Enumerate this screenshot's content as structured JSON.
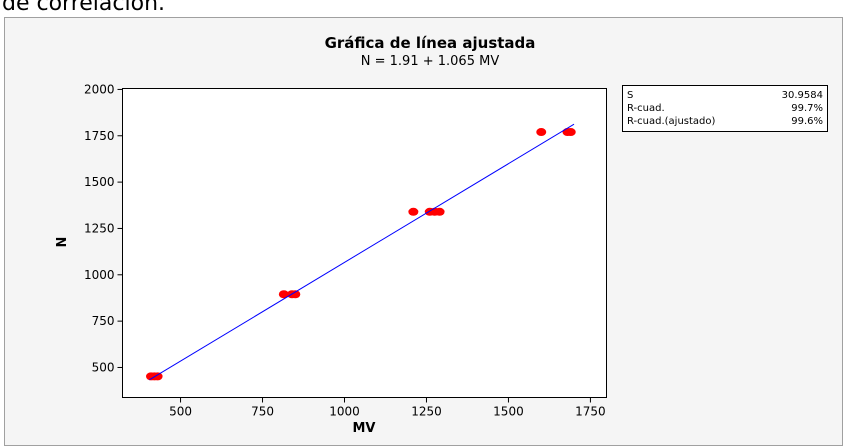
{
  "header": "de correlación.",
  "chart_data": {
    "type": "scatter",
    "title": "Gráfica de línea ajustada",
    "subtitle": "N =  1.91 + 1.065 MV",
    "x_label": "MV",
    "y_label": "N",
    "xlim": [
      323,
      1799
    ],
    "ylim": [
      338,
      2005
    ],
    "xticks": [
      500,
      750,
      1000,
      1250,
      1500,
      1750
    ],
    "yticks": [
      500,
      750,
      1000,
      1250,
      1500,
      1750,
      2000
    ],
    "grid": false,
    "series": [
      {
        "color": "#ff0000",
        "x": [
          410,
          420,
          430,
          815,
          840,
          850,
          1210,
          1260,
          1275,
          1290,
          1600,
          1680,
          1690
        ],
        "values": [
          452,
          452,
          452,
          895,
          895,
          895,
          1340,
          1340,
          1340,
          1340,
          1770,
          1770,
          1770
        ]
      },
      {
        "type": "line",
        "color": "#0000ff",
        "x": [
          405,
          1700
        ],
        "values": [
          433.2,
          1812.4
        ]
      }
    ],
    "stats": [
      {
        "label": "S",
        "value": "30.9584"
      },
      {
        "label": "R-cuad.",
        "value": "99.7%"
      },
      {
        "label": "R-cuad.(ajustado)",
        "value": "99.6%"
      }
    ]
  }
}
